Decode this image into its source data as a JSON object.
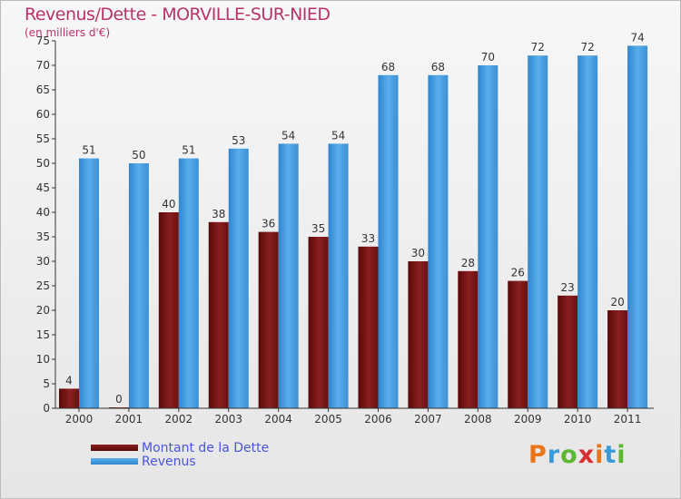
{
  "chart_data": {
    "type": "bar",
    "title": "Revenus/Dette - MORVILLE-SUR-NIED",
    "subtitle": "(en milliers d'€)",
    "categories": [
      "2000",
      "2001",
      "2002",
      "2003",
      "2004",
      "2005",
      "2006",
      "2007",
      "2008",
      "2009",
      "2010",
      "2011"
    ],
    "series": [
      {
        "name": "Montant de la Dette",
        "color": "#7a1414",
        "values": [
          4,
          0,
          40,
          38,
          36,
          35,
          33,
          30,
          28,
          26,
          23,
          20
        ]
      },
      {
        "name": "Revenus",
        "color": "#4a9fe0",
        "values": [
          51,
          50,
          51,
          53,
          54,
          54,
          68,
          68,
          70,
          72,
          72,
          74
        ]
      }
    ],
    "ylim": [
      0,
      75
    ],
    "yticks": [
      0,
      5,
      10,
      15,
      20,
      25,
      30,
      35,
      40,
      45,
      50,
      55,
      60,
      65,
      70,
      75
    ],
    "grid": false,
    "legend_position": "bottom-left"
  },
  "branding": {
    "logo_letters": [
      "P",
      "r",
      "o",
      "x",
      "i",
      "t",
      "i"
    ],
    "logo_colors": [
      "#e8751a",
      "#3a9ad9",
      "#5cb82e",
      "#d62f2f",
      "#e8751a",
      "#3a9ad9",
      "#5cb82e"
    ]
  }
}
